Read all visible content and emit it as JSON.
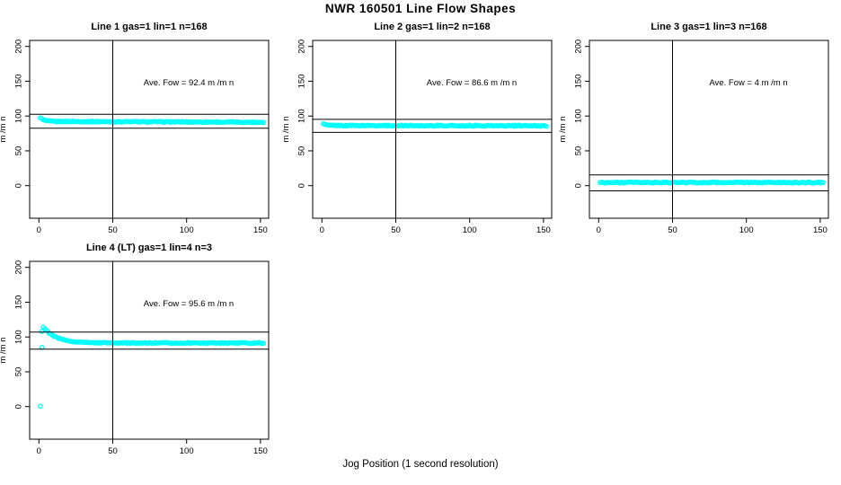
{
  "page": {
    "title": "NWR  160501  Line Flow Shapes",
    "xlabel": "Jog Position (1 second resolution)",
    "background_color": "#ffffff",
    "axis_color": "#000000"
  },
  "chart_data": {
    "layout": {
      "grid_rows": 2,
      "grid_cols": 3,
      "filled_cells": 4,
      "grid_on": false,
      "legend": "none"
    },
    "point_color": "#00ffff",
    "marker": "open-circle",
    "shared_axes": {
      "xlabel": "Jog Position (1 second resolution)",
      "ylabel": "m /m n",
      "x_ticks": [
        0,
        50,
        100,
        150
      ],
      "y_ticks": [
        0,
        50,
        100,
        150,
        200
      ],
      "xlim": [
        -6,
        156
      ],
      "ylim": [
        -47,
        209
      ],
      "vline_x": 50
    },
    "subplots": [
      {
        "type": "scatter",
        "title": "Line 1 gas=1 lin=1 n=168",
        "annotation": "Ave. Fow =  92.4  m /m n",
        "ave_flow": 92.4,
        "n": 168,
        "hline_upper": 102.5,
        "hline_lower": 82.5,
        "series": {
          "x_start": 1,
          "x_end": 152,
          "x_step": 1,
          "y_inf": 92.3,
          "amp": 5.5,
          "tau": 2.2,
          "slope": -0.008,
          "noise": 0.7,
          "seed": 1
        },
        "extra_points": []
      },
      {
        "type": "scatter",
        "title": "Line 2 gas=1 lin=2 n=168",
        "annotation": "Ave. Fow =  86.6  m /m n",
        "ave_flow": 86.6,
        "n": 168,
        "hline_upper": 95.2,
        "hline_lower": 76.5,
        "series": {
          "x_start": 1,
          "x_end": 152,
          "x_step": 1,
          "y_inf": 86.4,
          "amp": 2.4,
          "tau": 1.8,
          "slope": -0.003,
          "noise": 0.7,
          "seed": 2
        },
        "extra_points": []
      },
      {
        "type": "scatter",
        "title": "Line 3 gas=1 lin=3 n=168",
        "annotation": "Ave. Fow =  4  m /m n",
        "ave_flow": 4,
        "n": 168,
        "hline_upper": 15.5,
        "hline_lower": -7.5,
        "series": {
          "x_start": 1,
          "x_end": 152,
          "x_step": 1,
          "y_inf": 4.5,
          "amp": 0,
          "tau": 1,
          "slope": 0,
          "noise": 0.7,
          "seed": 3
        },
        "extra_points": []
      },
      {
        "type": "scatter",
        "title": "Line 4 (LT) gas=1 lin=4 n=3",
        "annotation": "Ave. Fow =  95.6  m /m n",
        "ave_flow": 95.6,
        "n": 3,
        "hline_upper": 107,
        "hline_lower": 82.5,
        "series": {
          "x_start": 3,
          "x_end": 152,
          "x_step": 1,
          "y_inf": 91.4,
          "amp": 23,
          "tau": 8.5,
          "slope": 0,
          "noise": 0.6,
          "seed": 4
        },
        "extra_points": [
          [
            1,
            0.5
          ],
          [
            2,
            108
          ],
          [
            2,
            85
          ]
        ]
      }
    ]
  }
}
